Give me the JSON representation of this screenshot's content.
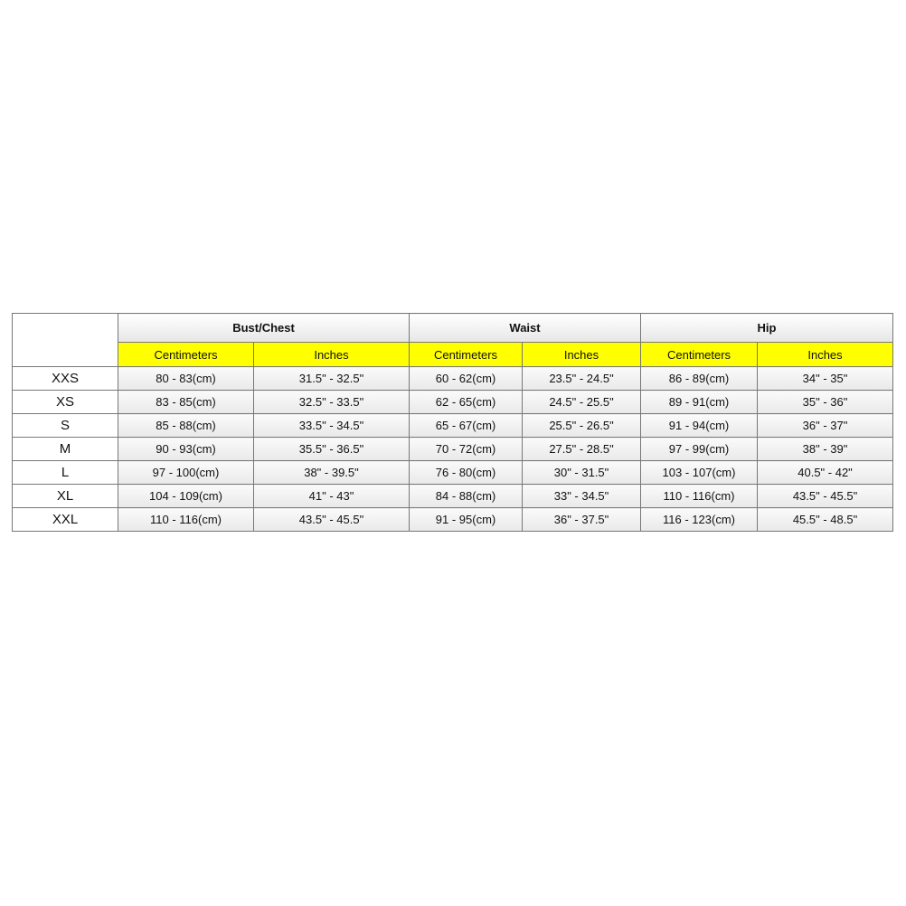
{
  "table": {
    "groups": [
      "Bust/Chest",
      "Waist",
      "Hip"
    ],
    "subheaders": [
      "Centimeters",
      "Inches",
      "Centimeters",
      "Inches",
      "Centimeters",
      "Inches"
    ],
    "rows": [
      [
        "XXS",
        "80 - 83(cm)",
        "31.5\" - 32.5\"",
        "60 - 62(cm)",
        "23.5\" - 24.5\"",
        "86 - 89(cm)",
        "34\" - 35\""
      ],
      [
        "XS",
        "83 - 85(cm)",
        "32.5\" - 33.5\"",
        "62 - 65(cm)",
        "24.5\" - 25.5\"",
        "89 - 91(cm)",
        "35\" - 36\""
      ],
      [
        "S",
        "85 - 88(cm)",
        "33.5\" - 34.5\"",
        "65 - 67(cm)",
        "25.5\" - 26.5\"",
        "91 - 94(cm)",
        "36\" - 37\""
      ],
      [
        "M",
        "90 - 93(cm)",
        "35.5\" - 36.5\"",
        "70 - 72(cm)",
        "27.5\" - 28.5\"",
        "97 - 99(cm)",
        "38\" - 39\""
      ],
      [
        "L",
        "97 - 100(cm)",
        "38\" - 39.5\"",
        "76 - 80(cm)",
        "30\" - 31.5\"",
        "103 - 107(cm)",
        "40.5\" - 42\""
      ],
      [
        "XL",
        "104 - 109(cm)",
        "41\" - 43\"",
        "84 - 88(cm)",
        "33\" - 34.5\"",
        "110 - 116(cm)",
        "43.5\" - 45.5\""
      ],
      [
        "XXL",
        "110 - 116(cm)",
        "43.5\" - 45.5\"",
        "91 - 95(cm)",
        "36\" - 37.5\"",
        "116 - 123(cm)",
        "45.5\" - 48.5\""
      ]
    ]
  }
}
